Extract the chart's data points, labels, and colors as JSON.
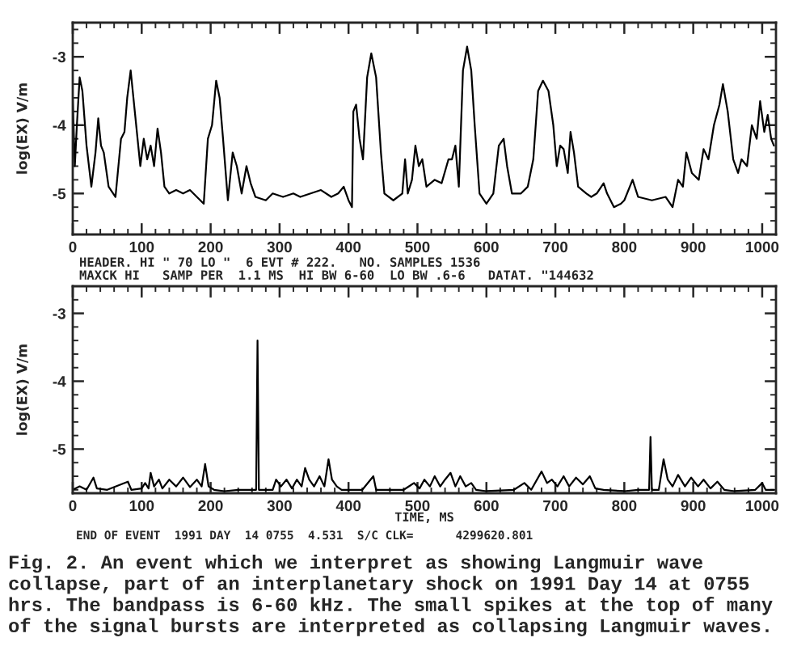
{
  "chart_data": [
    {
      "type": "line",
      "ylabel": "log(EX) V/m",
      "x": [
        0,
        3,
        6,
        10,
        14,
        20,
        27,
        33,
        37,
        41,
        45,
        52,
        62,
        70,
        75,
        79,
        84,
        90,
        95,
        98,
        103,
        108,
        113,
        118,
        123,
        128,
        133,
        140,
        150,
        160,
        170,
        180,
        190,
        196,
        202,
        208,
        213,
        218,
        225,
        232,
        238,
        245,
        252,
        258,
        265,
        280,
        290,
        305,
        320,
        330,
        345,
        360,
        375,
        385,
        393,
        400,
        405,
        407,
        411,
        416,
        421,
        427,
        433,
        440,
        447,
        452,
        465,
        478,
        482,
        486,
        492,
        497,
        502,
        507,
        513,
        525,
        535,
        545,
        550,
        555,
        560,
        566,
        572,
        578,
        583,
        590,
        600,
        610,
        618,
        625,
        630,
        637,
        650,
        660,
        668,
        675,
        682,
        690,
        697,
        702,
        707,
        712,
        718,
        722,
        727,
        733,
        745,
        752,
        760,
        770,
        775,
        785,
        795,
        800,
        812,
        820,
        840,
        860,
        870,
        878,
        885,
        890,
        898,
        908,
        915,
        922,
        930,
        938,
        943,
        950,
        958,
        965,
        970,
        978,
        985,
        992,
        997,
        1003,
        1008,
        1013,
        1017
      ],
      "series": [
        {
          "color": "#000000",
          "values": [
            -3.6,
            -4.6,
            -4.0,
            -3.3,
            -3.5,
            -4.3,
            -4.9,
            -4.4,
            -3.9,
            -4.3,
            -4.4,
            -4.9,
            -5.05,
            -4.2,
            -4.1,
            -3.6,
            -3.2,
            -3.8,
            -4.3,
            -4.6,
            -4.2,
            -4.5,
            -4.3,
            -4.6,
            -4.05,
            -4.4,
            -4.9,
            -5.0,
            -4.95,
            -5.0,
            -4.95,
            -5.05,
            -5.15,
            -4.2,
            -4.0,
            -3.35,
            -3.6,
            -4.2,
            -5.1,
            -4.4,
            -4.6,
            -5.0,
            -4.6,
            -4.85,
            -5.05,
            -5.1,
            -5.0,
            -5.05,
            -5.0,
            -5.05,
            -5.0,
            -4.95,
            -5.05,
            -5.0,
            -4.9,
            -5.1,
            -5.2,
            -3.8,
            -3.7,
            -4.2,
            -4.5,
            -3.3,
            -2.95,
            -3.3,
            -4.4,
            -5.0,
            -5.1,
            -5.0,
            -4.5,
            -5.0,
            -4.8,
            -4.3,
            -4.6,
            -4.5,
            -4.9,
            -4.8,
            -4.85,
            -4.5,
            -4.5,
            -4.3,
            -4.9,
            -3.2,
            -2.85,
            -3.2,
            -4.0,
            -5.0,
            -5.15,
            -5.0,
            -4.3,
            -4.2,
            -4.6,
            -5.0,
            -5.0,
            -4.9,
            -4.5,
            -3.5,
            -3.35,
            -3.5,
            -4.0,
            -4.6,
            -4.3,
            -4.35,
            -4.7,
            -4.1,
            -4.4,
            -4.9,
            -5.0,
            -5.05,
            -5.0,
            -4.85,
            -5.0,
            -5.2,
            -5.15,
            -5.1,
            -4.8,
            -5.05,
            -5.1,
            -5.05,
            -5.2,
            -4.8,
            -4.9,
            -4.4,
            -4.7,
            -4.8,
            -4.35,
            -4.5,
            -4.0,
            -3.7,
            -3.4,
            -3.8,
            -4.5,
            -4.7,
            -4.5,
            -4.6,
            -4.0,
            -4.2,
            -3.65,
            -4.1,
            -3.85,
            -4.2,
            -4.3
          ]
        }
      ],
      "xlim": [
        0,
        1020
      ],
      "xticks": [
        0,
        100,
        200,
        300,
        400,
        500,
        600,
        700,
        800,
        900,
        1000
      ],
      "ylim": [
        -5.6,
        -2.5
      ],
      "yticks": [
        -3,
        -4,
        -5
      ],
      "annotations": [
        "HEADER. HI \" 70 LO \"  6 EVT # 222.   NO. SAMPLES 1536",
        "MAXCK HI   SAMP PER  1.1 MS  HI BW 6-60  LO BW .6-6   DATAT. \"144632"
      ]
    },
    {
      "type": "line",
      "ylabel": "log(EX) V/m",
      "xlabel": "TIME, MS",
      "x": [
        0,
        10,
        20,
        30,
        35,
        50,
        80,
        85,
        100,
        105,
        110,
        113,
        118,
        125,
        130,
        140,
        150,
        160,
        170,
        180,
        187,
        192,
        197,
        205,
        220,
        240,
        260,
        266,
        268,
        270,
        290,
        295,
        302,
        310,
        318,
        325,
        332,
        337,
        343,
        350,
        358,
        365,
        371,
        376,
        383,
        390,
        420,
        436,
        440,
        480,
        495,
        503,
        510,
        518,
        525,
        533,
        540,
        548,
        555,
        562,
        570,
        578,
        585,
        600,
        640,
        655,
        665,
        680,
        688,
        695,
        703,
        712,
        720,
        730,
        740,
        750,
        758,
        770,
        800,
        820,
        836,
        838,
        840,
        850,
        857,
        863,
        870,
        878,
        888,
        897,
        907,
        915,
        925,
        935,
        945,
        960,
        990,
        1000,
        1005,
        1017
      ],
      "series": [
        {
          "color": "#000000",
          "values": [
            -5.6,
            -5.55,
            -5.6,
            -5.42,
            -5.58,
            -5.6,
            -5.48,
            -5.6,
            -5.58,
            -5.5,
            -5.58,
            -5.35,
            -5.55,
            -5.45,
            -5.58,
            -5.45,
            -5.55,
            -5.42,
            -5.56,
            -5.45,
            -5.55,
            -5.22,
            -5.55,
            -5.6,
            -5.62,
            -5.6,
            -5.6,
            -5.6,
            -3.4,
            -5.6,
            -5.6,
            -5.45,
            -5.55,
            -5.45,
            -5.58,
            -5.45,
            -5.55,
            -5.28,
            -5.45,
            -5.55,
            -5.4,
            -5.55,
            -5.15,
            -5.45,
            -5.55,
            -5.6,
            -5.6,
            -5.4,
            -5.6,
            -5.6,
            -5.5,
            -5.58,
            -5.45,
            -5.55,
            -5.4,
            -5.55,
            -5.45,
            -5.35,
            -5.55,
            -5.4,
            -5.55,
            -5.5,
            -5.6,
            -5.62,
            -5.6,
            -5.5,
            -5.6,
            -5.33,
            -5.5,
            -5.45,
            -5.55,
            -5.4,
            -5.55,
            -5.42,
            -5.52,
            -5.4,
            -5.58,
            -5.6,
            -5.62,
            -5.6,
            -5.6,
            -4.82,
            -5.6,
            -5.6,
            -5.15,
            -5.45,
            -5.55,
            -5.38,
            -5.55,
            -5.42,
            -5.55,
            -5.45,
            -5.58,
            -5.48,
            -5.6,
            -5.62,
            -5.6,
            -5.5,
            -5.6,
            -5.6
          ]
        }
      ],
      "xlim": [
        0,
        1020
      ],
      "xticks": [
        0,
        100,
        200,
        300,
        400,
        500,
        600,
        700,
        800,
        900,
        1000
      ],
      "ylim": [
        -5.65,
        -2.6
      ],
      "yticks": [
        -3,
        -4,
        -5
      ],
      "annotations": [
        "END OF EVENT  1991 DAY  14 0755  4.531  S/C CLK=      4299620.801",
        "Fig. 2. An event which we interpret as showing Langmuir wave collapse, part of an interplanetary shock on 1991 Day 14 at 0755 hrs. The bandpass is 6-60 kHz. The small spikes at the top of many of the signal bursts are interpreted as collapsing Langmuir waves."
      ]
    }
  ]
}
